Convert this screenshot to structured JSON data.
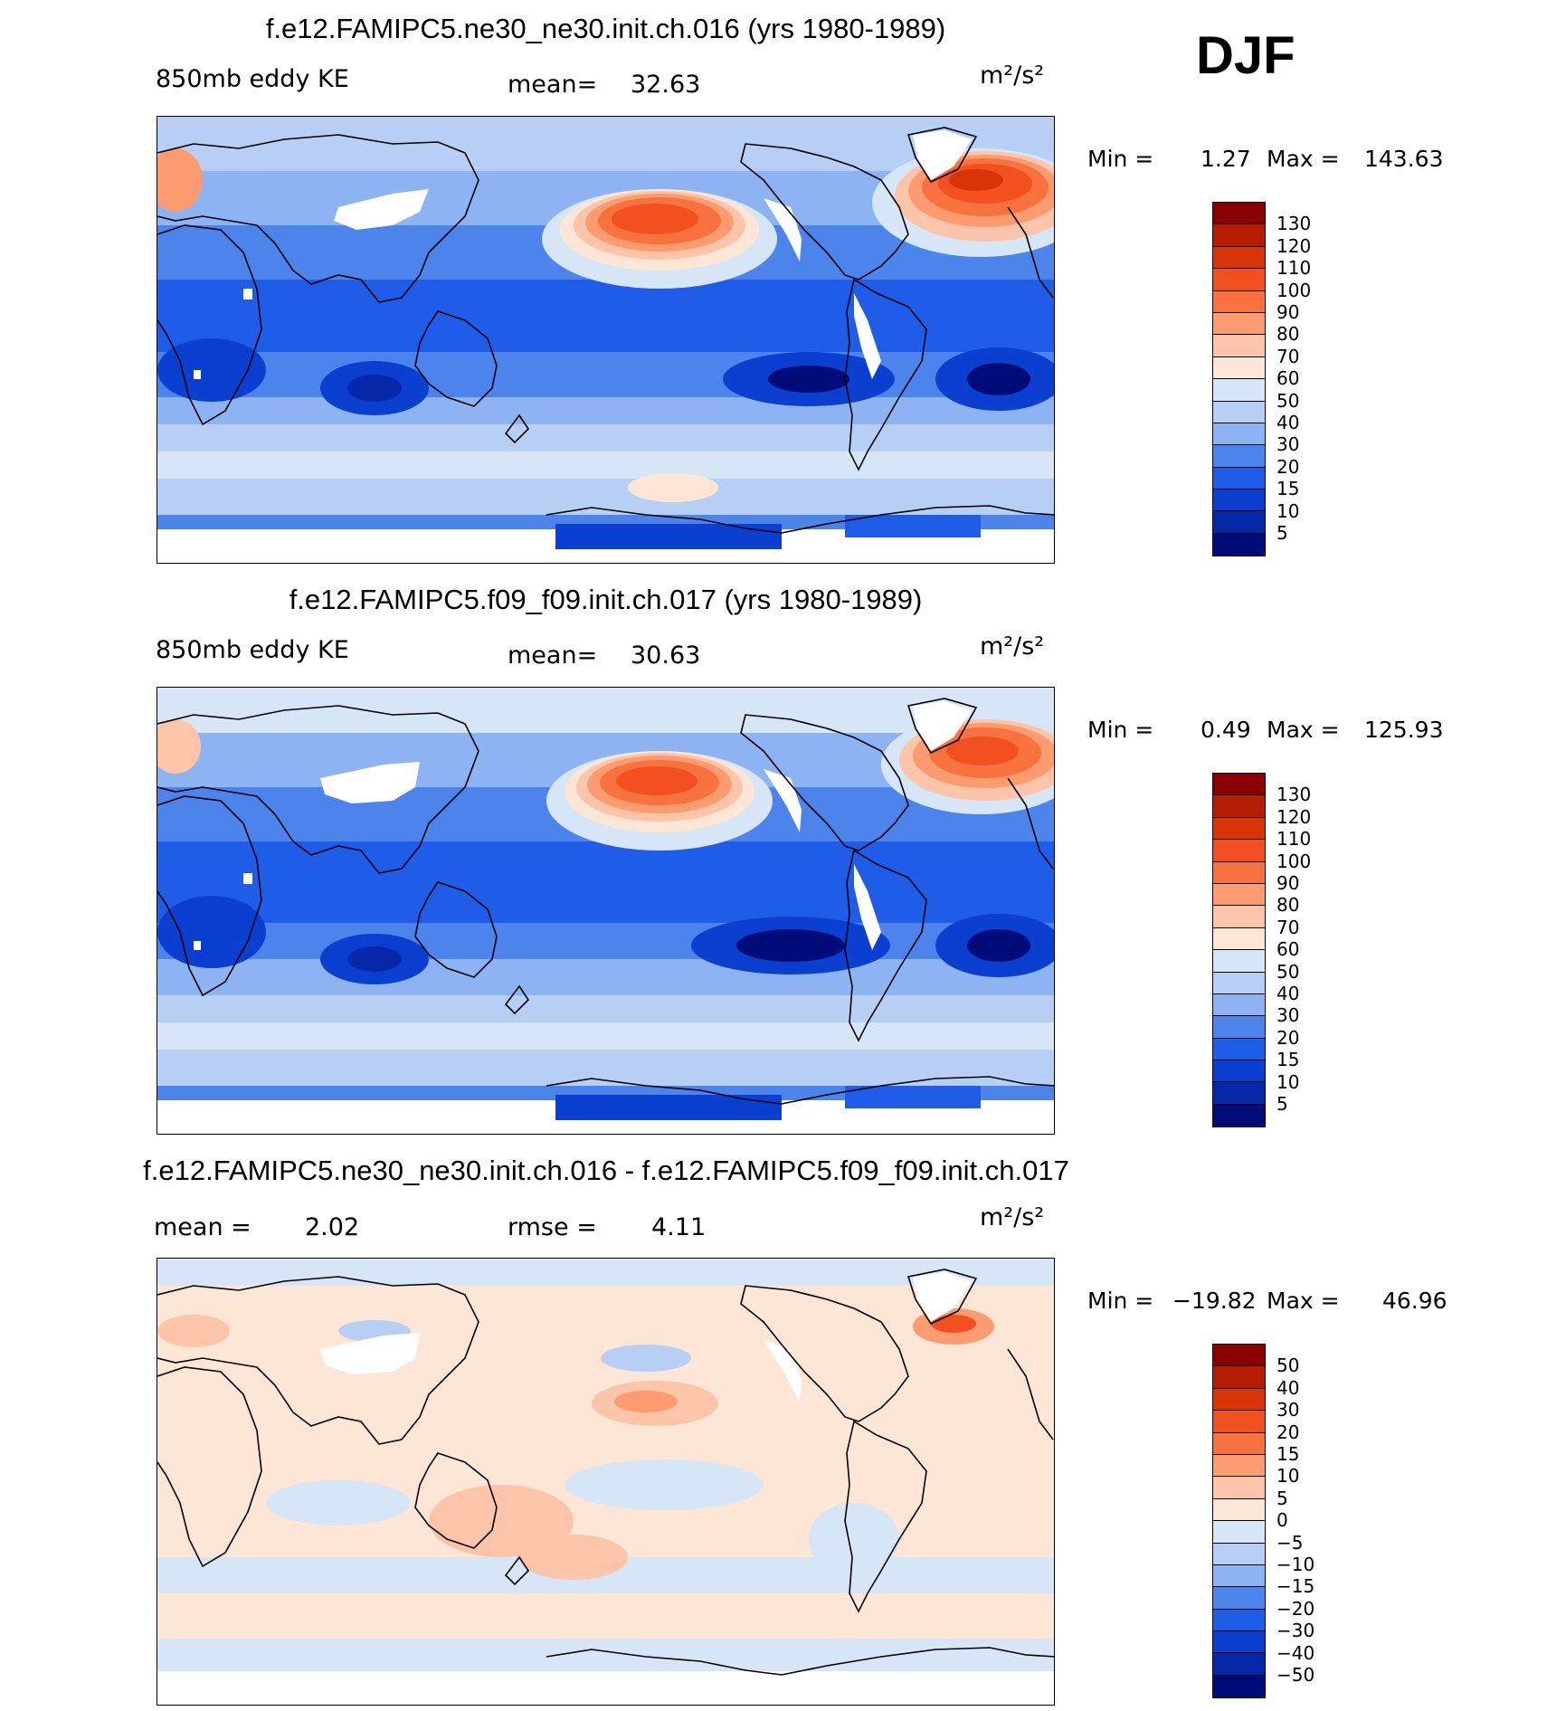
{
  "season": "DJF",
  "panels": [
    {
      "title": "f.e12.FAMIPC5.ne30_ne30.init.ch.016 (yrs 1980-1989)",
      "left_label": "850mb eddy KE",
      "stat1": "mean=",
      "stat1_value": "32.63",
      "units": "m²/s²",
      "min_label": "Min =",
      "min_value": "1.27",
      "max_label": "Max =",
      "max_value": "143.63",
      "colorbar_labels": [
        "130",
        "120",
        "110",
        "100",
        "90",
        "80",
        "70",
        "60",
        "50",
        "40",
        "30",
        "20",
        "15",
        "10",
        "5"
      ]
    },
    {
      "title": "f.e12.FAMIPC5.f09_f09.init.ch.017 (yrs 1980-1989)",
      "left_label": "850mb eddy KE",
      "stat1": "mean=",
      "stat1_value": "30.63",
      "units": "m²/s²",
      "min_label": "Min =",
      "min_value": "0.49",
      "max_label": "Max =",
      "max_value": "125.93",
      "colorbar_labels": [
        "130",
        "120",
        "110",
        "100",
        "90",
        "80",
        "70",
        "60",
        "50",
        "40",
        "30",
        "20",
        "15",
        "10",
        "5"
      ]
    },
    {
      "title": "f.e12.FAMIPC5.ne30_ne30.init.ch.016 - f.e12.FAMIPC5.f09_f09.init.ch.017",
      "left_label": "mean =",
      "left_value": "2.02",
      "stat1": "rmse =",
      "stat1_value": "4.11",
      "units": "m²/s²",
      "min_label": "Min =",
      "min_value": "−19.82",
      "max_label": "Max =",
      "max_value": "46.96",
      "colorbar_labels": [
        "50",
        "40",
        "30",
        "20",
        "15",
        "10",
        "5",
        "0",
        "−5",
        "−10",
        "−15",
        "−20",
        "−30",
        "−40",
        "−50"
      ]
    }
  ],
  "colorbar_colors": [
    "#8b0000",
    "#b51c00",
    "#d93408",
    "#f25020",
    "#f7723f",
    "#fc9a70",
    "#fcc4a8",
    "#fde6d6",
    "#d6e6f7",
    "#b7cff5",
    "#8db3f2",
    "#4d84ec",
    "#1f5ce8",
    "#0a3fd0",
    "#0528a8",
    "#020c78"
  ],
  "chart_data": [
    {
      "type": "heatmap",
      "title": "f.e12.FAMIPC5.ne30_ne30.init.ch.016 (yrs 1980-1989)",
      "variable": "850mb eddy KE",
      "units": "m²/s²",
      "mean": 32.63,
      "min": 1.27,
      "max": 143.63,
      "levels": [
        5,
        10,
        15,
        20,
        30,
        40,
        50,
        60,
        70,
        80,
        90,
        100,
        110,
        120,
        130
      ],
      "projection": "cylindrical equidistant, centered 180°"
    },
    {
      "type": "heatmap",
      "title": "f.e12.FAMIPC5.f09_f09.init.ch.017 (yrs 1980-1989)",
      "variable": "850mb eddy KE",
      "units": "m²/s²",
      "mean": 30.63,
      "min": 0.49,
      "max": 125.93,
      "levels": [
        5,
        10,
        15,
        20,
        30,
        40,
        50,
        60,
        70,
        80,
        90,
        100,
        110,
        120,
        130
      ],
      "projection": "cylindrical equidistant, centered 180°"
    },
    {
      "type": "heatmap",
      "title": "f.e12.FAMIPC5.ne30_ne30.init.ch.016 - f.e12.FAMIPC5.f09_f09.init.ch.017",
      "units": "m²/s²",
      "mean": 2.02,
      "rmse": 4.11,
      "min": -19.82,
      "max": 46.96,
      "levels": [
        -50,
        -40,
        -30,
        -20,
        -15,
        -10,
        -5,
        0,
        5,
        10,
        15,
        20,
        30,
        40,
        50
      ],
      "projection": "cylindrical equidistant, centered 180°"
    }
  ]
}
